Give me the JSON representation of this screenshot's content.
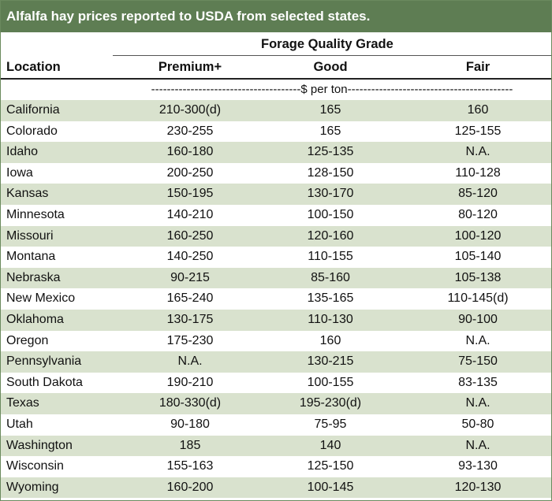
{
  "title": "Alfalfa hay prices reported to USDA from selected states.",
  "header": {
    "group_label": "Forage Quality Grade",
    "location_label": "Location",
    "columns": [
      "Premium+",
      "Good",
      "Fair"
    ]
  },
  "unit_row": "--------------------------------------$ per ton------------------------------------------",
  "colors": {
    "title_bar": "#5e7d53",
    "row_shade": "#d9e2ce"
  },
  "rows": [
    {
      "location": "California",
      "premium": "210-300(d)",
      "good": "165",
      "fair": "160"
    },
    {
      "location": "Colorado",
      "premium": "230-255",
      "good": "165",
      "fair": "125-155"
    },
    {
      "location": "Idaho",
      "premium": "160-180",
      "good": "125-135",
      "fair": "N.A."
    },
    {
      "location": "Iowa",
      "premium": "200-250",
      "good": "128-150",
      "fair": "110-128"
    },
    {
      "location": "Kansas",
      "premium": "150-195",
      "good": "130-170",
      "fair": "85-120"
    },
    {
      "location": "Minnesota",
      "premium": "140-210",
      "good": "100-150",
      "fair": "80-120"
    },
    {
      "location": "Missouri",
      "premium": "160-250",
      "good": "120-160",
      "fair": "100-120"
    },
    {
      "location": "Montana",
      "premium": "140-250",
      "good": "110-155",
      "fair": "105-140"
    },
    {
      "location": "Nebraska",
      "premium": "90-215",
      "good": "85-160",
      "fair": "105-138"
    },
    {
      "location": "New Mexico",
      "premium": "165-240",
      "good": "135-165",
      "fair": "110-145(d)"
    },
    {
      "location": "Oklahoma",
      "premium": "130-175",
      "good": "110-130",
      "fair": "90-100"
    },
    {
      "location": "Oregon",
      "premium": "175-230",
      "good": "160",
      "fair": "N.A."
    },
    {
      "location": "Pennsylvania",
      "premium": "N.A.",
      "good": "130-215",
      "fair": "75-150"
    },
    {
      "location": "South Dakota",
      "premium": "190-210",
      "good": "100-155",
      "fair": "83-135"
    },
    {
      "location": "Texas",
      "premium": "180-330(d)",
      "good": "195-230(d)",
      "fair": "N.A."
    },
    {
      "location": "Utah",
      "premium": "90-180",
      "good": "75-95",
      "fair": "50-80"
    },
    {
      "location": "Washington",
      "premium": "185",
      "good": "140",
      "fair": "N.A."
    },
    {
      "location": "Wisconsin",
      "premium": "155-163",
      "good": "125-150",
      "fair": "93-130"
    },
    {
      "location": "Wyoming",
      "premium": "160-200",
      "good": "100-145",
      "fair": "120-130"
    }
  ]
}
